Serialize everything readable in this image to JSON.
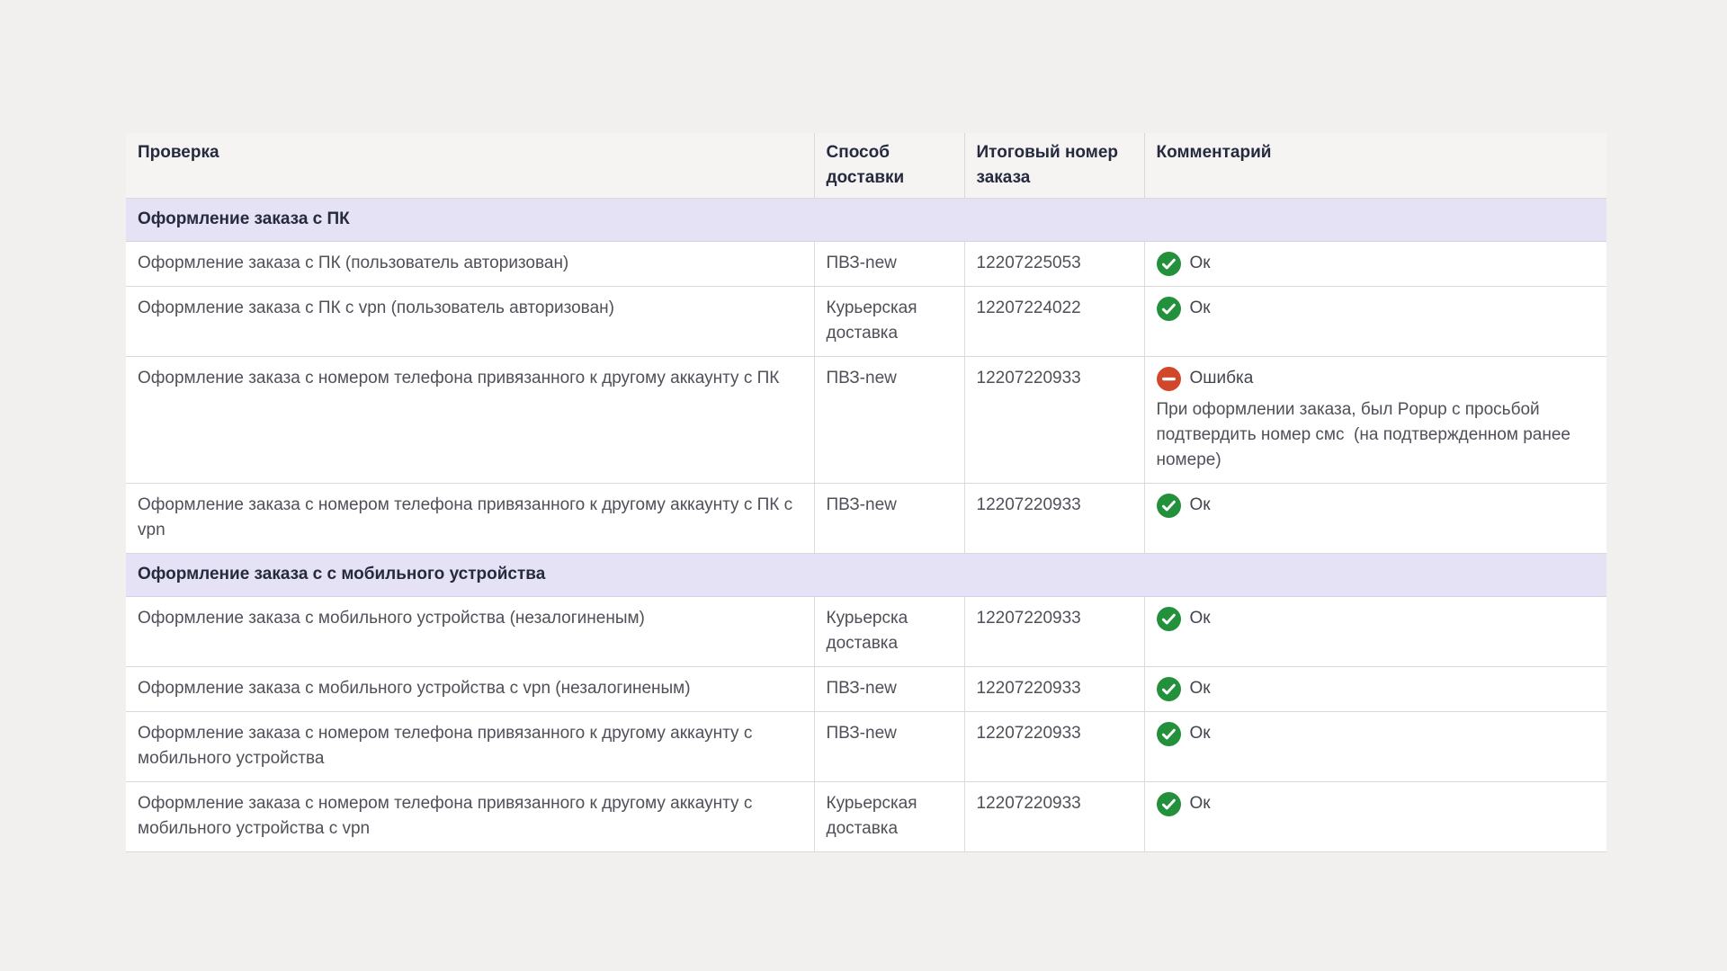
{
  "page": {
    "background": "#f1f0ef"
  },
  "status": {
    "ok_label": "Ок",
    "error_label": "Ошибка",
    "ok_color": "#23903c",
    "error_color": "#d2472a",
    "section_bg": "#e5e2f6"
  },
  "table": {
    "columns": [
      "Проверка",
      "Способ доставки",
      "Итоговый номер заказа",
      "Комментарий"
    ],
    "sections": [
      {
        "title": "Оформление заказа с ПК",
        "rows": [
          {
            "check": "Оформление заказа с ПК (пользователь авторизован)",
            "delivery": "ПВЗ-new",
            "order": "12207225053",
            "status": "ok",
            "comment": ""
          },
          {
            "check": "Оформление заказа с ПК с vpn (пользователь авторизован)",
            "delivery": "Курьерская доставка",
            "order": "12207224022",
            "status": "ok",
            "comment": ""
          },
          {
            "check": "Оформление заказа с номером телефона привязанного к другому аккаунту с ПК",
            "delivery": "ПВЗ-new",
            "order": "12207220933",
            "status": "error",
            "comment": "При оформлении заказа, был Popup с просьбой подтвердить номер смс  (на подтвержденном ранее номере)"
          },
          {
            "check": "Оформление заказа с номером телефона привязанного к другому аккаунту с ПК с vpn",
            "delivery": "ПВЗ-new",
            "order": "12207220933",
            "status": "ok",
            "comment": ""
          }
        ]
      },
      {
        "title": "Оформление заказа с с мобильного устройства",
        "rows": [
          {
            "check": "Оформление заказа с мобильного устройства (незалогиненым)",
            "delivery": "Курьерска доставка",
            "order": "12207220933",
            "status": "ok",
            "comment": ""
          },
          {
            "check": "Оформление заказа с мобильного устройства с vpn (незалогиненым)",
            "delivery": "ПВЗ-new",
            "order": "12207220933",
            "status": "ok",
            "comment": ""
          },
          {
            "check": "Оформление заказа с номером телефона привязанного к другому аккаунту с мобильного устройства",
            "delivery": "ПВЗ-new",
            "order": "12207220933",
            "status": "ok",
            "comment": ""
          },
          {
            "check": "Оформление заказа с номером телефона привязанного к другому аккаунту с мобильного устройства с vpn",
            "delivery": "Курьерская доставка",
            "order": "12207220933",
            "status": "ok",
            "comment": ""
          }
        ]
      }
    ]
  }
}
